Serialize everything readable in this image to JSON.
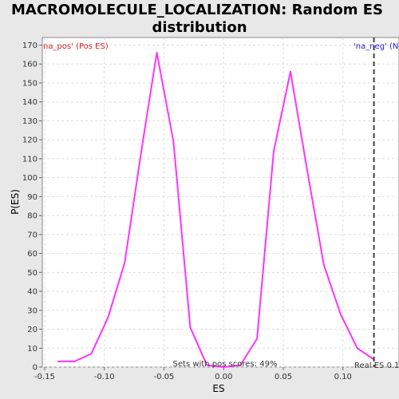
{
  "chart_data": {
    "type": "line",
    "title_line1": "MACROMOLECULE_LOCALIZATION: Random ES",
    "title_line2": "distribution",
    "xlabel": "ES",
    "ylabel": "P(ES)",
    "xlim": [
      -0.152,
      0.147
    ],
    "ylim": [
      0,
      174
    ],
    "x_ticks": [
      "-0.15",
      "-0.10",
      "-0.05",
      "0.00",
      "0.05",
      "0.10"
    ],
    "x_tick_values": [
      -0.15,
      -0.1,
      -0.05,
      0.0,
      0.05,
      0.1
    ],
    "y_ticks": [
      0,
      10,
      20,
      30,
      40,
      50,
      60,
      70,
      80,
      90,
      100,
      110,
      120,
      130,
      140,
      150,
      160,
      170
    ],
    "grid": true,
    "series": [
      {
        "color": "#ff33ff",
        "x": [
          -0.139,
          -0.125,
          -0.111,
          -0.097,
          -0.083,
          -0.069,
          -0.056,
          -0.042,
          -0.028,
          -0.014,
          0.0,
          0.014,
          0.028,
          0.042,
          0.056,
          0.07,
          0.084,
          0.098,
          0.112,
          0.126
        ],
        "y": [
          3,
          3,
          7,
          26,
          55,
          114,
          166,
          119,
          21,
          1,
          0,
          1,
          15,
          114,
          156,
          104,
          54,
          28,
          10,
          4
        ]
      }
    ],
    "real_es_line": {
      "x": 0.126,
      "color": "#404040"
    },
    "annotations": {
      "pos_label": "na_pos' (Pos ES)",
      "pos_color": "#dd2222",
      "neg_label": "'na_neg' (N",
      "neg_color": "#2222cc",
      "sets_label": "Sets with pos scores: 49%",
      "real_es_label": "Real ES 0.1"
    }
  }
}
